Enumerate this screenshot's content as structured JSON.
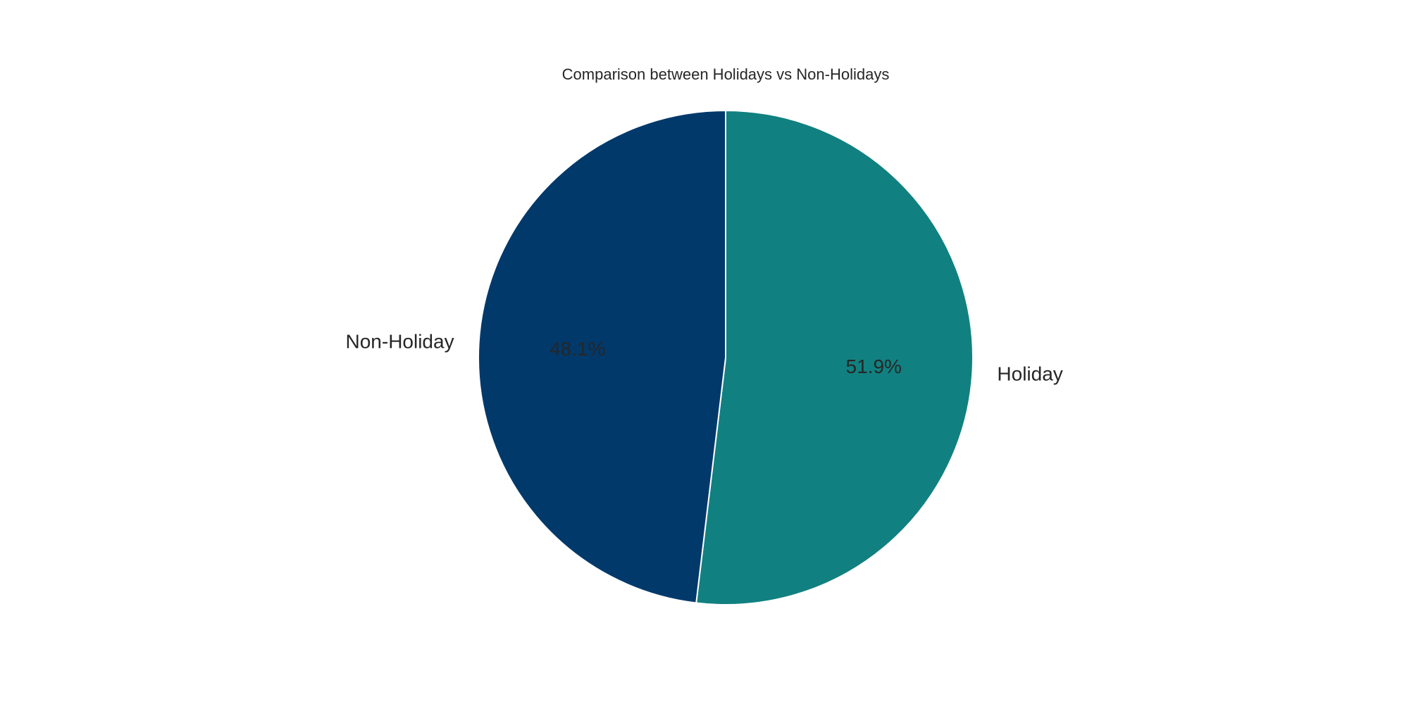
{
  "chart_data": {
    "type": "pie",
    "title": "Comparison between Holidays vs Non-Holidays",
    "slices": [
      {
        "label": "Holiday",
        "value": 51.9,
        "pct_label": "51.9%",
        "color": "#118080"
      },
      {
        "label": "Non-Holiday",
        "value": 48.1,
        "pct_label": "48.1%",
        "color": "#02396B"
      }
    ],
    "start": "12 o'clock",
    "direction": "clockwise",
    "edge_color": "#ffffff"
  }
}
